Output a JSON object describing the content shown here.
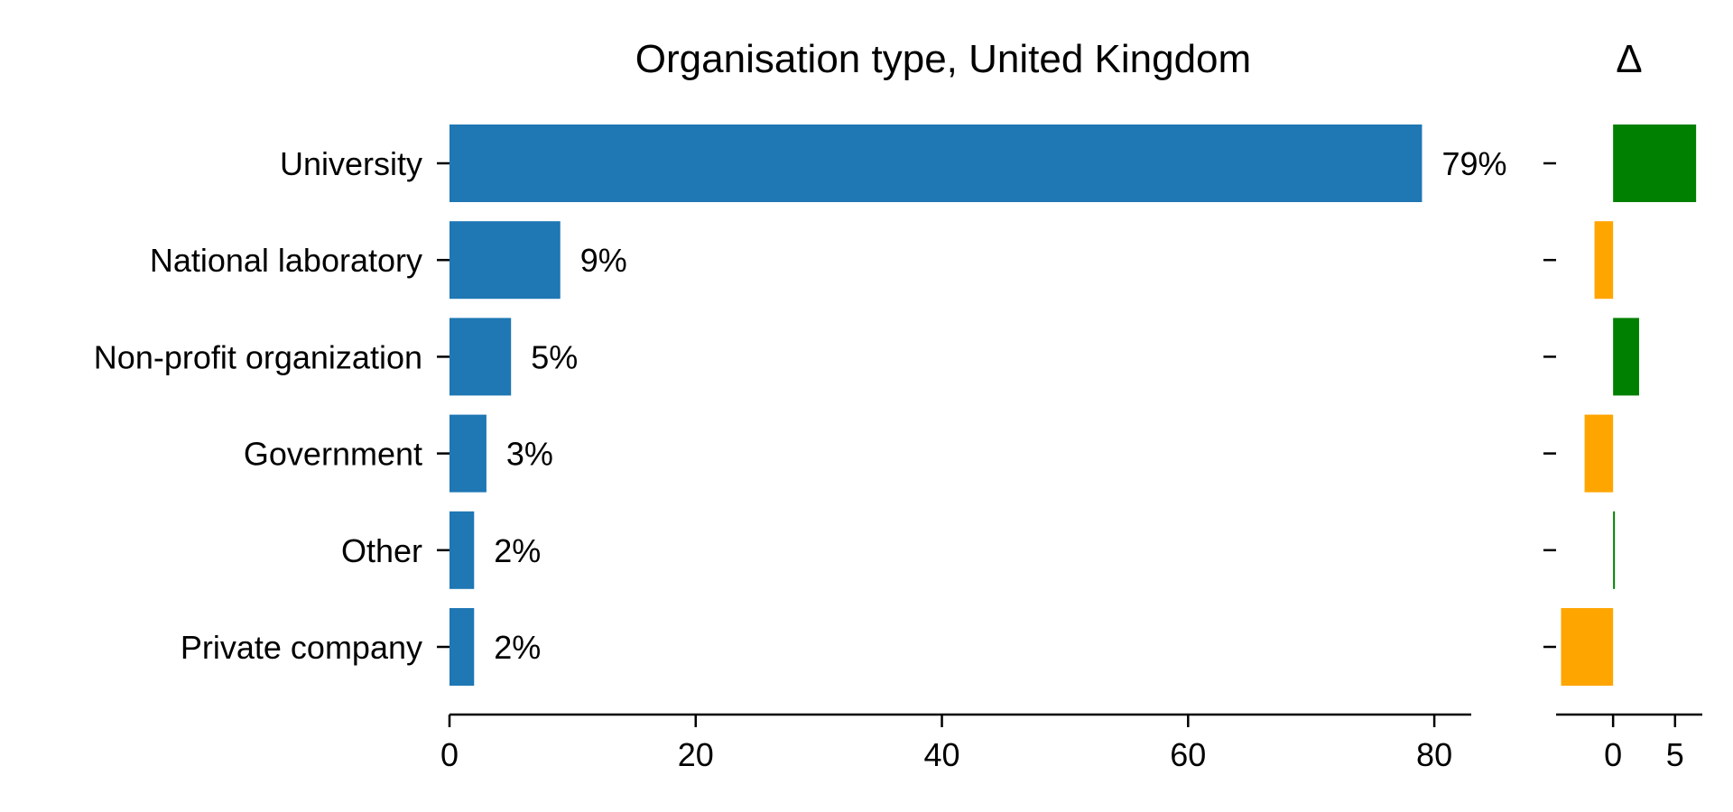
{
  "chart_data": {
    "type": "bar",
    "orientation": "horizontal",
    "title": "Organisation type, United Kingdom",
    "categories": [
      "University",
      "National laboratory",
      "Non-profit organization",
      "Government",
      "Other",
      "Private company"
    ],
    "values": [
      79,
      9,
      5,
      3,
      2,
      2
    ],
    "value_labels": [
      "79%",
      "9%",
      "5%",
      "3%",
      "2%",
      "2%"
    ],
    "xlim": [
      0,
      83
    ],
    "xticks": [
      0,
      20,
      40,
      60,
      80
    ],
    "bar_color": "#1f77b4",
    "grid": false,
    "delta_panel": {
      "title": "Δ",
      "values": [
        6.7,
        -1.5,
        2.1,
        -2.3,
        0.1,
        -4.2
      ],
      "xlim": [
        -4.6,
        7.2
      ],
      "xticks": [
        0,
        5
      ],
      "positive_color": "#008000",
      "negative_color": "#ffa500"
    }
  }
}
